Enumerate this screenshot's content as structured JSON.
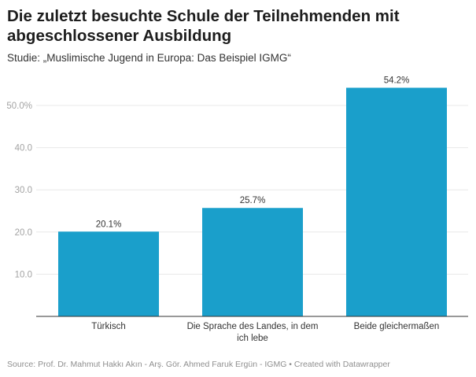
{
  "header": {
    "title": "Die zuletzt besuchte Schule der Teilnehmenden mit abgeschlossener Ausbildung",
    "subtitle": "Studie: „Muslimische Jugend in Europa: Das Beispiel IGMG“"
  },
  "footer": {
    "source": "Source: Prof. Dr. Mahmut Hakkı Akın - Arş. Gör. Ahmed Faruk Ergün - IGMG • Created with Datawrapper"
  },
  "chart_data": {
    "type": "bar",
    "title": "Die zuletzt besuchte Schule der Teilnehmenden mit abgeschlossener Ausbildung",
    "subtitle": "Studie: „Muslimische Jugend in Europa: Das Beispiel IGMG“",
    "categories": [
      [
        "Türkisch"
      ],
      [
        "Die Sprache des Landes, in dem",
        "ich lebe"
      ],
      [
        "Beide gleichermaßen"
      ]
    ],
    "values": [
      20.1,
      25.7,
      54.2
    ],
    "value_labels": [
      "20.1%",
      "25.7%",
      "54.2%"
    ],
    "bar_color": "#1a9fcb",
    "xlabel": "",
    "ylabel": "",
    "ylim": [
      0,
      55
    ],
    "yticks": [
      10,
      20,
      30,
      40,
      50
    ],
    "ytick_labels": [
      "10.0",
      "20.0",
      "30.0",
      "40.0",
      "50.0%"
    ],
    "grid": true,
    "legend": "none"
  }
}
